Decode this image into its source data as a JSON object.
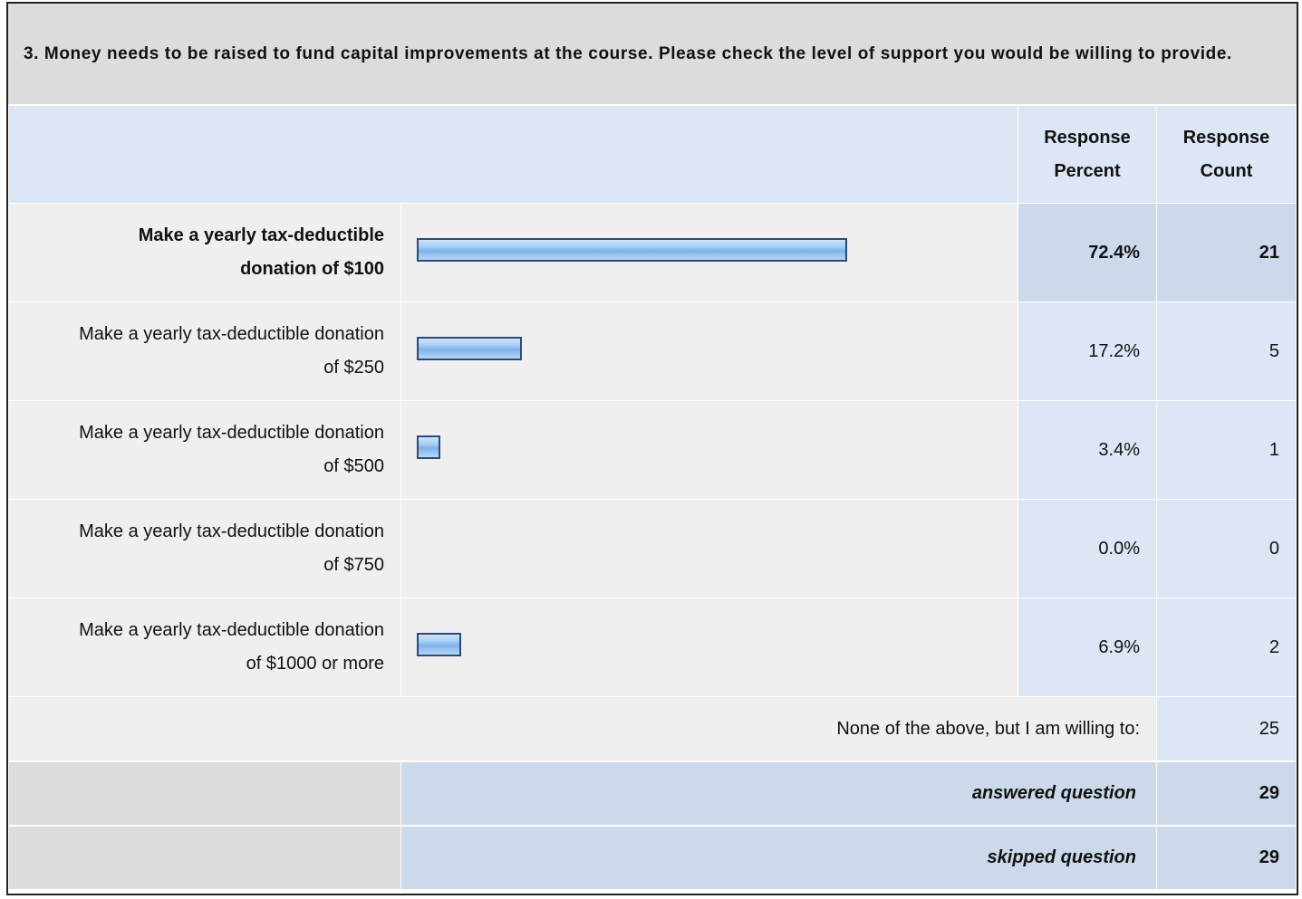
{
  "question": "3. Money needs to be raised to fund capital improvements at the course. Please check the level of support you would be willing to provide.",
  "headers": {
    "percent": "Response Percent",
    "count": "Response Count"
  },
  "rows": [
    {
      "label": "Make a yearly tax-deductible donation of $100",
      "percent": 72.4,
      "percent_label": "72.4%",
      "count": 21
    },
    {
      "label": "Make a yearly tax-deductible donation of $250",
      "percent": 17.2,
      "percent_label": "17.2%",
      "count": 5
    },
    {
      "label": "Make a yearly tax-deductible donation of $500",
      "percent": 3.4,
      "percent_label": "3.4%",
      "count": 1
    },
    {
      "label": "Make a yearly tax-deductible donation of $750",
      "percent": 0.0,
      "percent_label": "0.0%",
      "count": 0
    },
    {
      "label": "Make a yearly tax-deductible donation of $1000 or more",
      "percent": 6.9,
      "percent_label": "6.9%",
      "count": 2
    }
  ],
  "other": {
    "label": "None of the above, but I am willing to:",
    "count": 25
  },
  "answered": {
    "label": "answered question",
    "count": 29
  },
  "skipped": {
    "label": "skipped question",
    "count": 29
  }
}
